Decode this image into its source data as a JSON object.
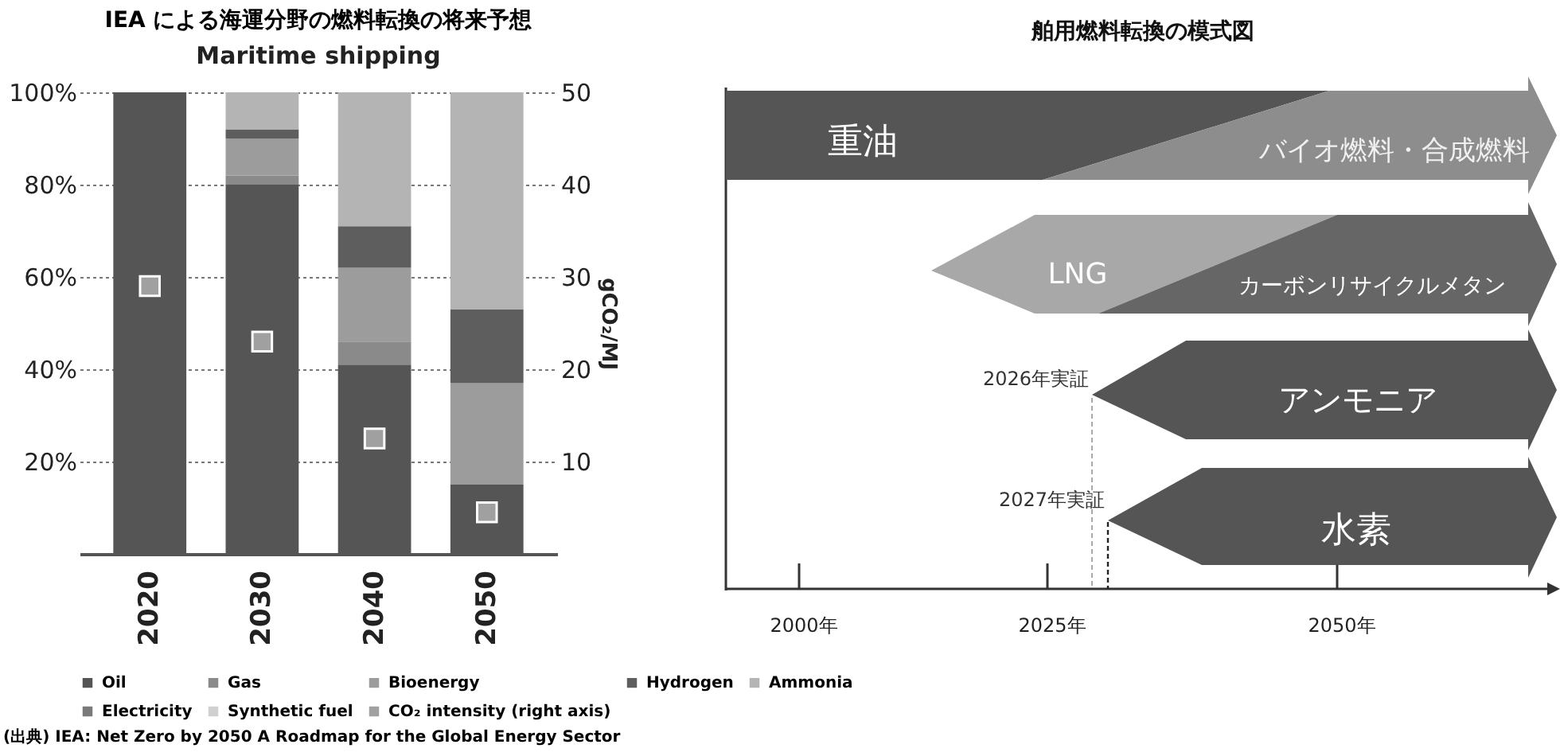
{
  "chart_data": [
    {
      "type": "bar",
      "title": "IEA による海運分野の燃料転換の将来予想",
      "subtitle": "Maritime shipping",
      "categories": [
        "2020",
        "2030",
        "2040",
        "2050"
      ],
      "stacked": true,
      "series": [
        {
          "name": "Oil",
          "color": "#555555",
          "values": [
            100,
            80,
            41,
            15
          ]
        },
        {
          "name": "Gas",
          "color": "#8a8a8a",
          "values": [
            0,
            2,
            5,
            0
          ]
        },
        {
          "name": "Bioenergy",
          "color": "#9c9c9c",
          "values": [
            0,
            8,
            16,
            22
          ]
        },
        {
          "name": "Hydrogen",
          "color": "#5e5e5e",
          "values": [
            0,
            2,
            9,
            16
          ]
        },
        {
          "name": "Ammonia",
          "color": "#b4b4b4",
          "values": [
            0,
            8,
            29,
            47
          ]
        },
        {
          "name": "Electricity",
          "color": "#7a7a7a",
          "values": [
            0,
            0,
            0,
            0
          ]
        },
        {
          "name": "Synthetic fuel",
          "color": "#d0d0d0",
          "values": [
            0,
            0,
            0,
            0
          ]
        },
        {
          "name": "CO₂ intensity (right axis)",
          "color": "#a0a0a0",
          "type": "scatter",
          "axis": "y2",
          "marker": "square",
          "values": [
            29,
            23,
            12.5,
            4.5
          ]
        }
      ],
      "ylim": [
        0,
        100
      ],
      "yticks": [
        {
          "value": 20,
          "label": "20%"
        },
        {
          "value": 40,
          "label": "40%"
        },
        {
          "value": 60,
          "label": "60%"
        },
        {
          "value": 80,
          "label": "80%"
        },
        {
          "value": 100,
          "label": "100%"
        }
      ],
      "y2lim": [
        0,
        50
      ],
      "y2ticks": [
        10,
        20,
        30,
        40,
        50
      ],
      "y2label": "gCO₂/MJ",
      "grid": "y",
      "legend": "bottom",
      "annotations": [
        "(出典) IEA: Net Zero by 2050 A Roadmap for the Global Energy Sector"
      ]
    },
    {
      "type": "other",
      "title": "舶用燃料転換の模式図",
      "annotations": [
        "重油",
        "バイオ燃料・合成燃料",
        "LNG",
        "カーボンリサイクルメタン",
        "2026年実証",
        "アンモニア",
        "2027年実証",
        "水素",
        "2000年",
        "2025年",
        "2050年"
      ]
    }
  ]
}
